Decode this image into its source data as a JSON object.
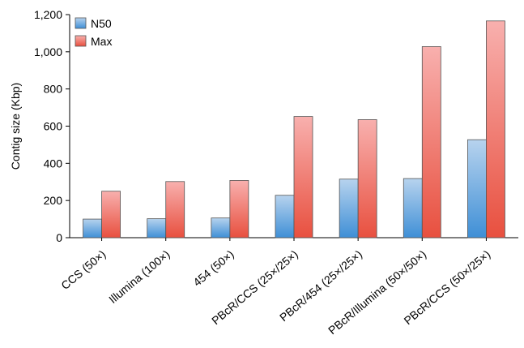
{
  "chart_data": {
    "type": "bar",
    "categories": [
      "CCS (50×)",
      "Illumina (100×)",
      "454 (50×)",
      "PBcR/CCS (25×/25×)",
      "PBcR/454 (25×/25×)",
      "PBcR/Illumina (50×/50×)",
      "PBcR/CCS (50×/25×)"
    ],
    "series": [
      {
        "name": "N50",
        "values": [
          100,
          102,
          106,
          228,
          315,
          318,
          527
        ],
        "color": "#5b9bd5"
      },
      {
        "name": "Max",
        "values": [
          250,
          302,
          308,
          652,
          635,
          1028,
          1166
        ],
        "color": "#e8584b"
      }
    ],
    "xlabel": "",
    "ylabel": "Contig size (Kbp)",
    "ylim": [
      0,
      1200
    ],
    "yticks": [
      0,
      200,
      400,
      600,
      800,
      1000,
      1200
    ],
    "ytick_labels": [
      "0",
      "200",
      "400",
      "600",
      "800",
      "1,000",
      "1,200"
    ],
    "legend_position": "top-left",
    "grid": false
  }
}
